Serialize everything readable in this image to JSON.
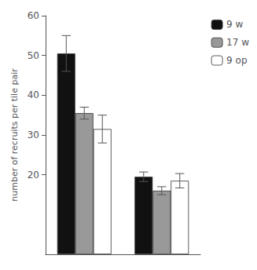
{
  "chart_data": {
    "type": "bar",
    "categories": [
      null,
      null
    ],
    "series": [
      {
        "name": "9 w",
        "color": "#111111",
        "values": [
          50.5,
          19.5
        ],
        "errors": [
          4.5,
          1.2
        ]
      },
      {
        "name": "17 w",
        "color": "#999999",
        "values": [
          35.5,
          16.0
        ],
        "errors": [
          1.5,
          1.0
        ]
      },
      {
        "name": "9 op",
        "color": "#ffffff",
        "values": [
          31.5,
          18.5
        ],
        "errors": [
          3.5,
          1.8
        ]
      }
    ],
    "ylabel": "number of recruits per tile pair",
    "ylim": [
      0,
      60
    ],
    "yticks": [
      20,
      30,
      40,
      50,
      60
    ],
    "grid": false,
    "legend": "right",
    "tick_labels": "y"
  }
}
